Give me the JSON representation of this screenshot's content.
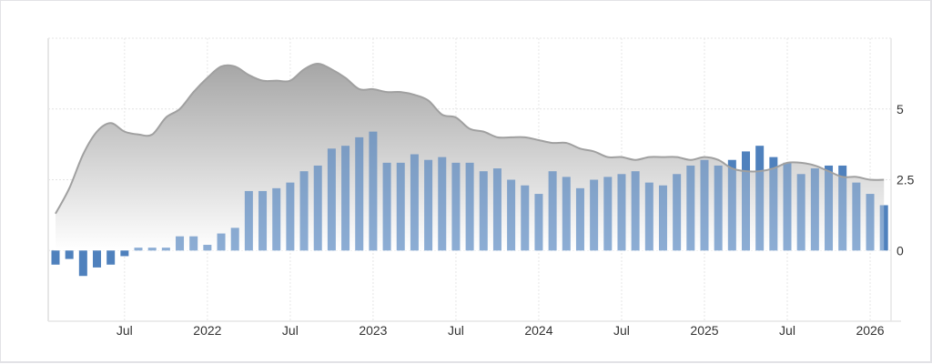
{
  "chart_data": {
    "type": "bar",
    "x": [
      "2021-02",
      "2021-03",
      "2021-04",
      "2021-05",
      "2021-06",
      "2021-07",
      "2021-08",
      "2021-09",
      "2021-10",
      "2021-11",
      "2021-12",
      "2022-01",
      "2022-02",
      "2022-03",
      "2022-04",
      "2022-05",
      "2022-06",
      "2022-07",
      "2022-08",
      "2022-09",
      "2022-10",
      "2022-11",
      "2022-12",
      "2023-01",
      "2023-02",
      "2023-03",
      "2023-04",
      "2023-05",
      "2023-06",
      "2023-07",
      "2023-08",
      "2023-09",
      "2023-10",
      "2023-11",
      "2023-12",
      "2024-01",
      "2024-02",
      "2024-03",
      "2024-04",
      "2024-05",
      "2024-06",
      "2024-07",
      "2024-08",
      "2024-09",
      "2024-10",
      "2024-11",
      "2024-12",
      "2025-01",
      "2025-02",
      "2025-03",
      "2025-04",
      "2025-05",
      "2025-06",
      "2025-07",
      "2025-08",
      "2025-09",
      "2025-10",
      "2025-11",
      "2025-12",
      "2026-01",
      "2026-02"
    ],
    "series": [
      {
        "kind": "bar",
        "color": "#4f81bd",
        "values": [
          -0.5,
          -0.3,
          -0.9,
          -0.6,
          -0.5,
          -0.2,
          0.1,
          0.1,
          0.1,
          0.5,
          0.5,
          0.2,
          0.6,
          0.8,
          2.1,
          2.1,
          2.2,
          2.4,
          2.8,
          3.0,
          3.6,
          3.7,
          4.0,
          4.2,
          3.1,
          3.1,
          3.4,
          3.2,
          3.3,
          3.1,
          3.1,
          2.8,
          2.9,
          2.5,
          2.3,
          2.0,
          2.8,
          2.6,
          2.2,
          2.5,
          2.6,
          2.7,
          2.8,
          2.4,
          2.3,
          2.7,
          3.0,
          3.2,
          3.0,
          3.2,
          3.5,
          3.7,
          3.3,
          3.1,
          2.7,
          2.9,
          3.0,
          3.0,
          2.4,
          2.0,
          1.6
        ]
      },
      {
        "kind": "area",
        "color": "#a0a0a0",
        "values": [
          1.3,
          2.2,
          3.4,
          4.2,
          4.5,
          4.2,
          4.1,
          4.1,
          4.7,
          5.0,
          5.6,
          6.1,
          6.5,
          6.5,
          6.2,
          6.0,
          6.0,
          6.0,
          6.4,
          6.6,
          6.4,
          6.1,
          5.7,
          5.7,
          5.6,
          5.6,
          5.5,
          5.3,
          4.8,
          4.7,
          4.3,
          4.2,
          4.0,
          4.0,
          4.0,
          3.9,
          3.8,
          3.8,
          3.6,
          3.5,
          3.3,
          3.3,
          3.2,
          3.3,
          3.3,
          3.3,
          3.2,
          3.3,
          3.2,
          2.9,
          2.8,
          2.8,
          2.9,
          3.1,
          3.1,
          3.0,
          2.8,
          2.6,
          2.6,
          2.5,
          2.5
        ]
      }
    ],
    "xticks": [
      {
        "date": "2021-07",
        "label": "Jul"
      },
      {
        "date": "2022-01",
        "label": "2022"
      },
      {
        "date": "2022-07",
        "label": "Jul"
      },
      {
        "date": "2023-01",
        "label": "2023"
      },
      {
        "date": "2023-07",
        "label": "Jul"
      },
      {
        "date": "2024-01",
        "label": "2024"
      },
      {
        "date": "2024-07",
        "label": "Jul"
      },
      {
        "date": "2025-01",
        "label": "2025"
      },
      {
        "date": "2025-07",
        "label": "Jul"
      },
      {
        "date": "2026-01",
        "label": "2026"
      }
    ],
    "yticks": [
      {
        "value": 0,
        "label": "0"
      },
      {
        "value": 2.5,
        "label": "2.5"
      },
      {
        "value": 5,
        "label": "5"
      }
    ],
    "ylim": [
      -2.5,
      7.5
    ],
    "y_axis_side": "right",
    "grid": true,
    "title": "",
    "xlabel": "",
    "ylabel": ""
  }
}
